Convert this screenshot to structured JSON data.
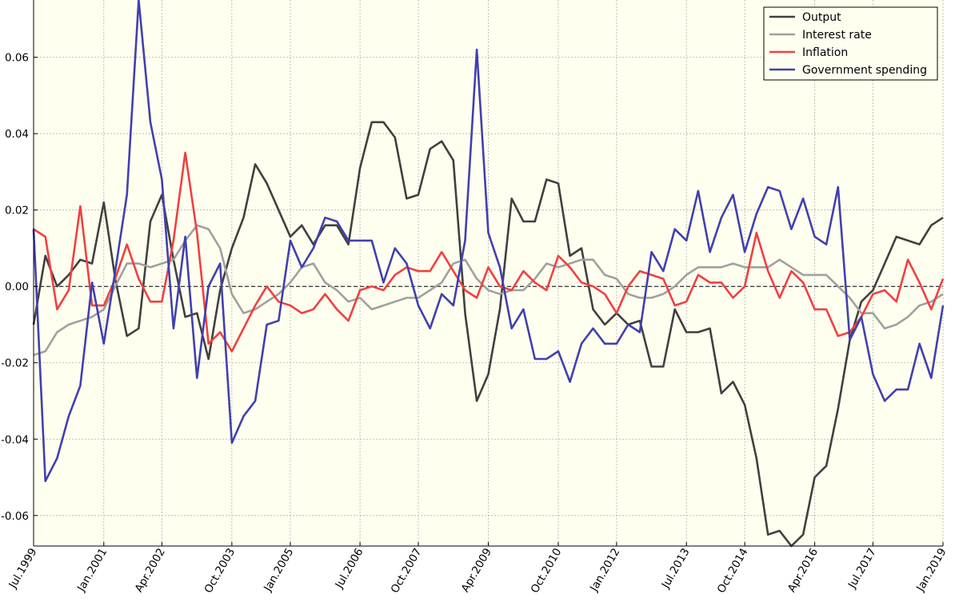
{
  "chart_data": {
    "type": "line",
    "title": "",
    "xlabel": "",
    "ylabel": "",
    "xlim": [
      "1999-07-01",
      "2019-01-01"
    ],
    "ylim": [
      -0.068,
      0.075
    ],
    "yticks": [
      -0.06,
      -0.04,
      -0.02,
      0.0,
      0.02,
      0.04,
      0.06
    ],
    "yticklabels": [
      "-0.06",
      "-0.04",
      "-0.02",
      "0.00",
      "0.02",
      "0.04",
      "0.06"
    ],
    "xticks": [
      "1999-07-01",
      "2001-01-01",
      "2002-04-01",
      "2003-10-01",
      "2005-01-01",
      "2006-07-01",
      "2007-10-01",
      "2009-04-01",
      "2010-10-01",
      "2012-01-01",
      "2013-07-01",
      "2014-10-01",
      "2016-04-01",
      "2017-07-01",
      "2019-01-01"
    ],
    "xticklabels": [
      "Jul.1999",
      "Jan.2001",
      "Apr.2002",
      "Oct.2003",
      "Jan.2005",
      "Jul.2006",
      "Oct.2007",
      "Apr.2009",
      "Oct.2010",
      "Jan.2012",
      "Jul.2013",
      "Oct.2014",
      "Apr.2016",
      "Jul.2017",
      "Jan.2019"
    ],
    "grid": true,
    "zero_line": true,
    "legend_position": "top-right",
    "background": "#fffff0",
    "x": [
      "1999-07-01",
      "1999-10-01",
      "2000-01-01",
      "2000-04-01",
      "2000-07-01",
      "2000-10-01",
      "2001-01-01",
      "2001-04-01",
      "2001-07-01",
      "2001-10-01",
      "2002-01-01",
      "2002-04-01",
      "2002-07-01",
      "2002-10-01",
      "2003-01-01",
      "2003-04-01",
      "2003-07-01",
      "2003-10-01",
      "2004-01-01",
      "2004-04-01",
      "2004-07-01",
      "2004-10-01",
      "2005-01-01",
      "2005-04-01",
      "2005-07-01",
      "2005-10-01",
      "2006-01-01",
      "2006-04-01",
      "2006-07-01",
      "2006-10-01",
      "2007-01-01",
      "2007-04-01",
      "2007-07-01",
      "2007-10-01",
      "2008-01-01",
      "2008-04-01",
      "2008-07-01",
      "2008-10-01",
      "2009-01-01",
      "2009-04-01",
      "2009-07-01",
      "2009-10-01",
      "2010-01-01",
      "2010-04-01",
      "2010-07-01",
      "2010-10-01",
      "2011-01-01",
      "2011-04-01",
      "2011-07-01",
      "2011-10-01",
      "2012-01-01",
      "2012-04-01",
      "2012-07-01",
      "2012-10-01",
      "2013-01-01",
      "2013-04-01",
      "2013-07-01",
      "2013-10-01",
      "2014-01-01",
      "2014-04-01",
      "2014-07-01",
      "2014-10-01",
      "2015-01-01",
      "2015-04-01",
      "2015-07-01",
      "2015-10-01",
      "2016-01-01",
      "2016-04-01",
      "2016-07-01",
      "2016-10-01",
      "2017-01-01",
      "2017-04-01",
      "2017-07-01",
      "2017-10-01",
      "2018-01-01",
      "2018-04-01",
      "2018-07-01",
      "2018-10-01",
      "2019-01-01"
    ],
    "series": [
      {
        "name": "Output",
        "color": "#404040",
        "values": [
          -0.01,
          0.008,
          0.0,
          0.003,
          0.007,
          0.006,
          0.022,
          0.002,
          -0.013,
          -0.011,
          0.017,
          0.024,
          0.007,
          -0.008,
          -0.007,
          -0.019,
          -0.001,
          0.01,
          0.018,
          0.032,
          0.027,
          0.02,
          0.013,
          0.016,
          0.011,
          0.016,
          0.016,
          0.011,
          0.031,
          0.043,
          0.043,
          0.039,
          0.023,
          0.024,
          0.036,
          0.038,
          0.033,
          -0.007,
          -0.03,
          -0.023,
          -0.006,
          0.023,
          0.017,
          0.017,
          0.028,
          0.027,
          0.008,
          0.01,
          -0.006,
          -0.01,
          -0.007,
          -0.01,
          -0.009,
          -0.021,
          -0.021,
          -0.006,
          -0.012,
          -0.012,
          -0.011,
          -0.028,
          -0.025,
          -0.031,
          -0.045,
          -0.065,
          -0.064,
          -0.068,
          -0.065,
          -0.05,
          -0.047,
          -0.032,
          -0.014,
          -0.004,
          -0.001,
          0.006,
          0.013,
          0.012,
          0.011,
          0.016,
          0.018
        ]
      },
      {
        "name": "Interest rate",
        "color": "#a0a0a0",
        "values": [
          -0.018,
          -0.017,
          -0.012,
          -0.01,
          -0.009,
          -0.008,
          -0.006,
          0.0,
          0.006,
          0.006,
          0.005,
          0.006,
          0.007,
          0.012,
          0.016,
          0.015,
          0.01,
          -0.002,
          -0.007,
          -0.006,
          -0.004,
          -0.002,
          0.001,
          0.005,
          0.006,
          0.001,
          -0.001,
          -0.004,
          -0.003,
          -0.006,
          -0.005,
          -0.004,
          -0.003,
          -0.003,
          -0.001,
          0.001,
          0.006,
          0.007,
          0.002,
          -0.001,
          -0.002,
          -0.001,
          -0.001,
          0.002,
          0.006,
          0.005,
          0.006,
          0.007,
          0.007,
          0.003,
          0.002,
          -0.002,
          -0.003,
          -0.003,
          -0.002,
          0.0,
          0.003,
          0.005,
          0.005,
          0.005,
          0.006,
          0.005,
          0.005,
          0.005,
          0.007,
          0.005,
          0.003,
          0.003,
          0.003,
          0.0,
          -0.003,
          -0.007,
          -0.007,
          -0.011,
          -0.01,
          -0.008,
          -0.005,
          -0.004,
          -0.002
        ]
      },
      {
        "name": "Inflation",
        "color": "#f04040",
        "values": [
          0.015,
          0.013,
          -0.006,
          -0.001,
          0.021,
          -0.005,
          -0.005,
          0.002,
          0.011,
          0.002,
          -0.004,
          -0.004,
          0.012,
          0.035,
          0.014,
          -0.015,
          -0.012,
          -0.017,
          -0.011,
          -0.005,
          0.0,
          -0.004,
          -0.005,
          -0.007,
          -0.006,
          -0.002,
          -0.006,
          -0.009,
          -0.001,
          0.0,
          -0.001,
          0.003,
          0.005,
          0.004,
          0.004,
          0.009,
          0.004,
          -0.001,
          -0.003,
          0.005,
          0.0,
          -0.001,
          0.004,
          0.001,
          -0.001,
          0.008,
          0.005,
          0.001,
          0.0,
          -0.002,
          -0.007,
          0.0,
          0.004,
          0.003,
          0.002,
          -0.005,
          -0.004,
          0.003,
          0.001,
          0.001,
          -0.003,
          0.0,
          0.014,
          0.004,
          -0.003,
          0.004,
          0.001,
          -0.006,
          -0.006,
          -0.013,
          -0.012,
          -0.008,
          -0.002,
          -0.001,
          -0.004,
          0.007,
          0.001,
          -0.006,
          0.002
        ]
      },
      {
        "name": "Government spending",
        "color": "#4040b0",
        "values": [
          0.015,
          -0.051,
          -0.045,
          -0.034,
          -0.026,
          0.001,
          -0.015,
          0.004,
          0.024,
          0.075,
          0.043,
          0.028,
          -0.011,
          0.013,
          -0.024,
          0.0,
          0.006,
          -0.041,
          -0.034,
          -0.03,
          -0.01,
          -0.009,
          0.012,
          0.005,
          0.01,
          0.018,
          0.017,
          0.012,
          0.012,
          0.012,
          0.001,
          0.01,
          0.006,
          -0.005,
          -0.011,
          -0.002,
          -0.005,
          0.012,
          0.062,
          0.014,
          0.005,
          -0.011,
          -0.006,
          -0.019,
          -0.019,
          -0.017,
          -0.025,
          -0.015,
          -0.011,
          -0.015,
          -0.015,
          -0.01,
          -0.012,
          0.009,
          0.004,
          0.015,
          0.012,
          0.025,
          0.009,
          0.018,
          0.024,
          0.009,
          0.019,
          0.026,
          0.025,
          0.015,
          0.023,
          0.013,
          0.011,
          0.026,
          -0.014,
          -0.008,
          -0.023,
          -0.03,
          -0.027,
          -0.027,
          -0.015,
          -0.024,
          -0.005
        ]
      }
    ]
  }
}
